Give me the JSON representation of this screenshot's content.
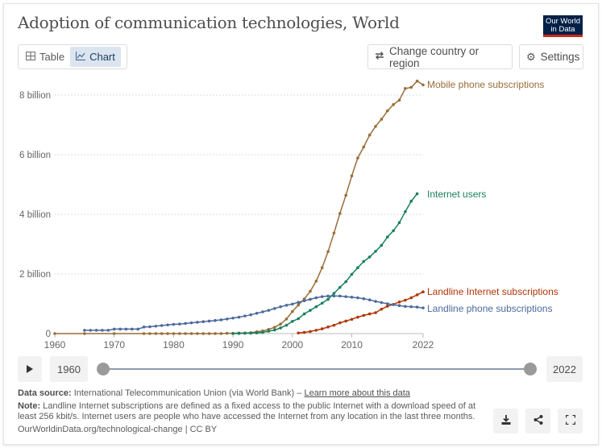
{
  "header": {
    "title": "Adoption of communication technologies, World",
    "logo_line1": "Our World",
    "logo_line2": "in Data"
  },
  "tabs": [
    {
      "label": "Table",
      "icon": "table-icon",
      "active": false
    },
    {
      "label": "Chart",
      "icon": "line-chart-icon",
      "active": true
    }
  ],
  "toolbar": {
    "change_region_label": "Change country or region",
    "settings_label": "Settings"
  },
  "timeline": {
    "start_label": "1960",
    "end_label": "2022",
    "start_value": 1960,
    "end_value": 2022
  },
  "footer": {
    "source_label": "Data source:",
    "source_text": "International Telecommunication Union (via World Bank) – ",
    "source_link": "Learn more about this data",
    "note_label": "Note:",
    "note_text": "Landline Internet subscriptions are defined as a fixed access to the public Internet with a download speed of at least 256 kbit/s. Internet users are people who have accessed the Internet from any location in the last three months.",
    "url_text": "OurWorldinData.org/technological-change | CC BY"
  },
  "chart_data": {
    "type": "line",
    "title": "Adoption of communication technologies, World",
    "xlabel": "",
    "ylabel": "",
    "xlim": [
      1960,
      2022
    ],
    "ylim": [
      0,
      8.5
    ],
    "y_unit": "billion",
    "grid": true,
    "legend": "right-inline-labels",
    "x_ticks": [
      1960,
      1970,
      1980,
      1990,
      2000,
      2010,
      2022
    ],
    "y_ticks": [
      {
        "value": 0,
        "label": "0"
      },
      {
        "value": 2,
        "label": "2 billion"
      },
      {
        "value": 4,
        "label": "4 billion"
      },
      {
        "value": 6,
        "label": "6 billion"
      },
      {
        "value": 8,
        "label": "8 billion"
      }
    ],
    "series": [
      {
        "name": "Mobile phone subscriptions",
        "color": "#996d39",
        "x": [
          1960,
          1965,
          1970,
          1975,
          1976,
          1977,
          1978,
          1979,
          1980,
          1981,
          1982,
          1983,
          1984,
          1985,
          1986,
          1987,
          1988,
          1989,
          1990,
          1991,
          1992,
          1993,
          1994,
          1995,
          1996,
          1997,
          1998,
          1999,
          2000,
          2001,
          2002,
          2003,
          2004,
          2005,
          2006,
          2007,
          2008,
          2009,
          2010,
          2011,
          2012,
          2013,
          2014,
          2015,
          2016,
          2017,
          2018,
          2019,
          2020,
          2021,
          2022
        ],
        "y": [
          0,
          0,
          0,
          0,
          0,
          0,
          0,
          0,
          0,
          0,
          0,
          0,
          0,
          0,
          0,
          0,
          0,
          0.01,
          0.01,
          0.02,
          0.02,
          0.03,
          0.06,
          0.09,
          0.14,
          0.21,
          0.32,
          0.49,
          0.74,
          0.96,
          1.16,
          1.42,
          1.76,
          2.21,
          2.75,
          3.37,
          4.03,
          4.64,
          5.29,
          5.89,
          6.26,
          6.66,
          6.95,
          7.19,
          7.47,
          7.68,
          7.83,
          8.22,
          8.26,
          8.47,
          8.34
        ]
      },
      {
        "name": "Internet users",
        "color": "#18805c",
        "x": [
          1990,
          1991,
          1992,
          1993,
          1994,
          1995,
          1996,
          1997,
          1998,
          1999,
          2000,
          2001,
          2002,
          2003,
          2004,
          2005,
          2006,
          2007,
          2008,
          2009,
          2010,
          2011,
          2012,
          2013,
          2014,
          2015,
          2016,
          2017,
          2018,
          2019,
          2020,
          2021
        ],
        "y": [
          0,
          0.004,
          0.01,
          0.015,
          0.025,
          0.04,
          0.08,
          0.12,
          0.19,
          0.28,
          0.41,
          0.5,
          0.66,
          0.78,
          0.9,
          1.02,
          1.15,
          1.35,
          1.55,
          1.74,
          1.99,
          2.21,
          2.42,
          2.57,
          2.76,
          2.96,
          3.24,
          3.45,
          3.72,
          4.09,
          4.44,
          4.69
        ]
      },
      {
        "name": "Landline Internet subscriptions",
        "color": "#b13507",
        "x": [
          2001,
          2002,
          2003,
          2004,
          2005,
          2006,
          2007,
          2008,
          2009,
          2010,
          2011,
          2012,
          2013,
          2014,
          2015,
          2016,
          2017,
          2018,
          2019,
          2020,
          2021,
          2022
        ],
        "y": [
          0.02,
          0.04,
          0.07,
          0.11,
          0.16,
          0.22,
          0.28,
          0.36,
          0.42,
          0.48,
          0.55,
          0.61,
          0.66,
          0.7,
          0.82,
          0.92,
          0.98,
          1.06,
          1.12,
          1.2,
          1.3,
          1.4
        ]
      },
      {
        "name": "Landline phone subscriptions",
        "color": "#4c6a9c",
        "x": [
          1965,
          1966,
          1967,
          1968,
          1969,
          1970,
          1971,
          1972,
          1973,
          1974,
          1975,
          1976,
          1977,
          1978,
          1979,
          1980,
          1981,
          1982,
          1983,
          1984,
          1985,
          1986,
          1987,
          1988,
          1989,
          1990,
          1991,
          1992,
          1993,
          1994,
          1995,
          1996,
          1997,
          1998,
          1999,
          2000,
          2001,
          2002,
          2003,
          2004,
          2005,
          2006,
          2007,
          2008,
          2009,
          2010,
          2011,
          2012,
          2013,
          2014,
          2015,
          2016,
          2017,
          2018,
          2019,
          2020,
          2021,
          2022
        ],
        "y": [
          0.11,
          0.11,
          0.11,
          0.11,
          0.11,
          0.15,
          0.15,
          0.15,
          0.15,
          0.15,
          0.22,
          0.23,
          0.25,
          0.27,
          0.29,
          0.31,
          0.32,
          0.34,
          0.36,
          0.38,
          0.4,
          0.42,
          0.44,
          0.46,
          0.49,
          0.52,
          0.55,
          0.59,
          0.63,
          0.68,
          0.73,
          0.78,
          0.84,
          0.9,
          0.95,
          0.99,
          1.05,
          1.1,
          1.15,
          1.2,
          1.24,
          1.26,
          1.26,
          1.26,
          1.24,
          1.22,
          1.2,
          1.17,
          1.13,
          1.08,
          1.04,
          1.0,
          0.97,
          0.94,
          0.91,
          0.9,
          0.89,
          0.86
        ]
      }
    ]
  }
}
